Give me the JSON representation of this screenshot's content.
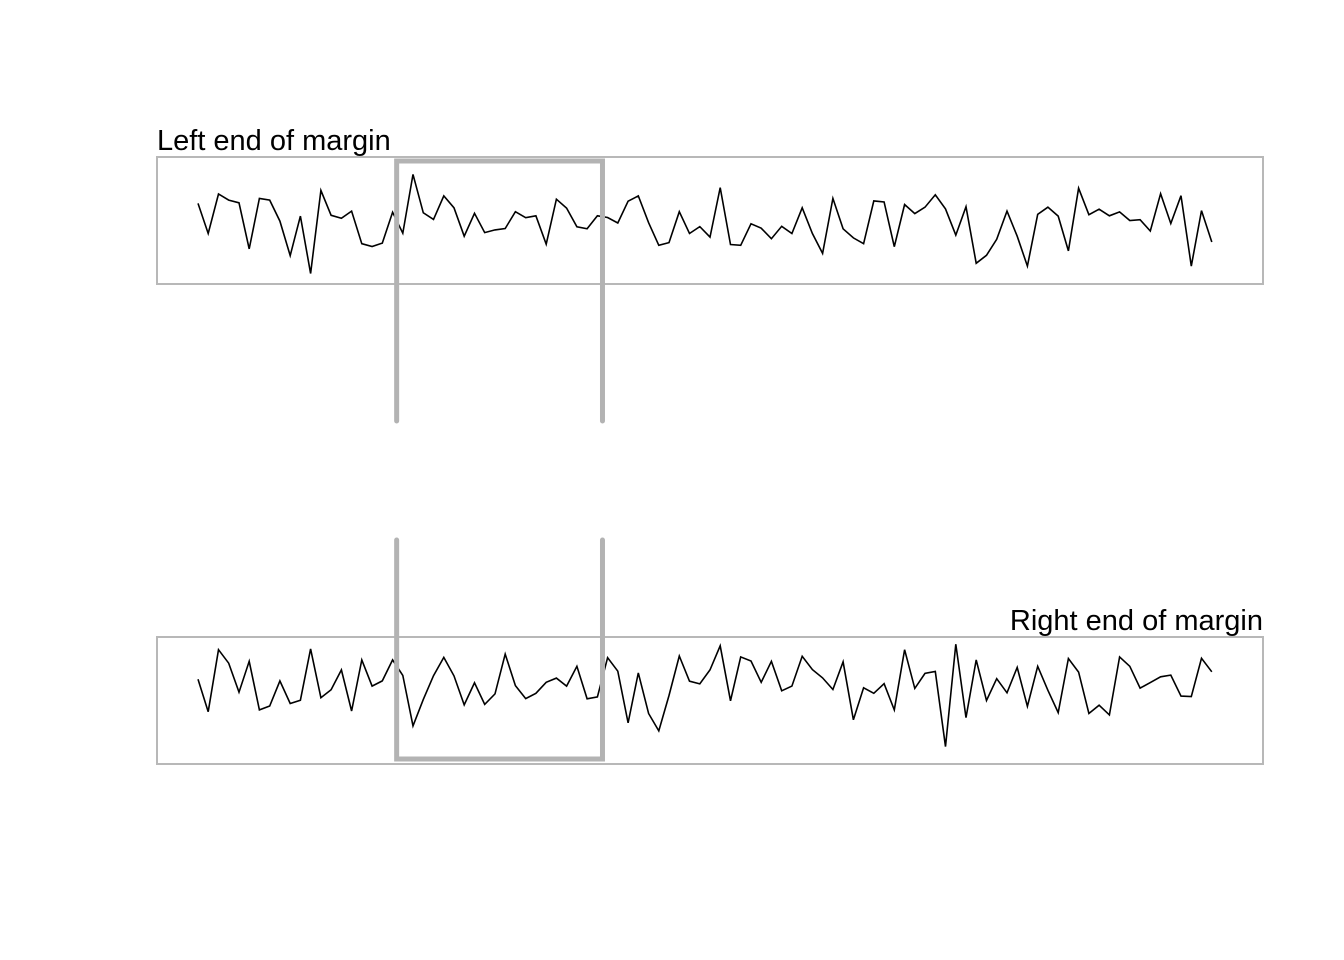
{
  "colors": {
    "frame": "#b8b8b8",
    "zoom": "#b3b3b3",
    "line": "#000000"
  },
  "chart_data": [
    {
      "type": "line",
      "title": "Left end of margin",
      "xlabel": "",
      "ylabel": "",
      "xlim": [
        1,
        101
      ],
      "ylim": [
        -2.3,
        2.3
      ],
      "axes_shown": false,
      "grid": false,
      "highlight_range": [
        20.4,
        40.5
      ],
      "values": [
        0.62,
        -0.47,
        0.96,
        0.74,
        0.64,
        -1.03,
        0.8,
        0.74,
        -0.02,
        -1.27,
        0.16,
        -1.92,
        1.09,
        0.19,
        0.08,
        0.34,
        -0.84,
        -0.94,
        -0.82,
        0.3,
        -0.46,
        1.67,
        0.28,
        0.04,
        0.89,
        0.46,
        -0.57,
        0.26,
        -0.44,
        -0.34,
        -0.29,
        0.32,
        0.1,
        0.17,
        -0.86,
        0.77,
        0.45,
        -0.23,
        -0.3,
        0.17,
        0.11,
        -0.09,
        0.7,
        0.89,
        -0.08,
        -0.9,
        -0.8,
        0.32,
        -0.47,
        -0.22,
        -0.6,
        1.19,
        -0.87,
        -0.9,
        -0.12,
        -0.28,
        -0.66,
        -0.21,
        -0.47,
        0.46,
        -0.47,
        -1.19,
        0.8,
        -0.3,
        -0.63,
        -0.84,
        0.71,
        0.67,
        -0.95,
        0.58,
        0.25,
        0.48,
        0.93,
        0.42,
        -0.53,
        0.5,
        -1.55,
        -1.26,
        -0.68,
        0.34,
        -0.57,
        -1.65,
        0.22,
        0.48,
        0.16,
        -1.1,
        1.17,
        0.21,
        0.41,
        0.17,
        0.31,
        0.0,
        0.03,
        -0.38,
        0.97,
        -0.11,
        0.9,
        -1.65,
        0.36,
        -0.78
      ]
    },
    {
      "type": "line",
      "title": "Right end of margin",
      "xlabel": "",
      "ylabel": "",
      "xlim": [
        1,
        101
      ],
      "ylim": [
        -2.3,
        2.3
      ],
      "axes_shown": false,
      "grid": false,
      "highlight_range": [
        20.4,
        40.5
      ],
      "values": [
        0.77,
        -0.41,
        1.84,
        1.35,
        0.3,
        1.42,
        -0.34,
        -0.2,
        0.71,
        -0.11,
        0.01,
        1.87,
        0.1,
        0.39,
        1.11,
        -0.38,
        1.47,
        0.52,
        0.71,
        1.47,
        0.91,
        -0.92,
        0.04,
        0.9,
        1.56,
        0.89,
        -0.16,
        0.64,
        -0.14,
        0.24,
        1.68,
        0.54,
        0.07,
        0.26,
        0.66,
        0.81,
        0.52,
        1.24,
        0.06,
        0.13,
        1.55,
        1.06,
        -0.81,
        1.0,
        -0.47,
        -1.1,
        0.18,
        1.61,
        0.7,
        0.6,
        1.11,
        1.98,
        -0.01,
        1.58,
        1.43,
        0.66,
        1.42,
        0.35,
        0.52,
        1.6,
        1.12,
        0.82,
        0.4,
        1.4,
        -0.7,
        0.46,
        0.26,
        0.61,
        -0.34,
        1.84,
        0.44,
        0.98,
        1.05,
        -1.67,
        2.04,
        -0.62,
        1.47,
        0.0,
        0.79,
        0.28,
        1.2,
        -0.21,
        1.24,
        0.37,
        -0.44,
        1.52,
        1.03,
        -0.47,
        -0.17,
        -0.52,
        1.58,
        1.24,
        0.45,
        0.65,
        0.86,
        0.92,
        0.16,
        0.14,
        1.53,
        1.04
      ]
    }
  ]
}
